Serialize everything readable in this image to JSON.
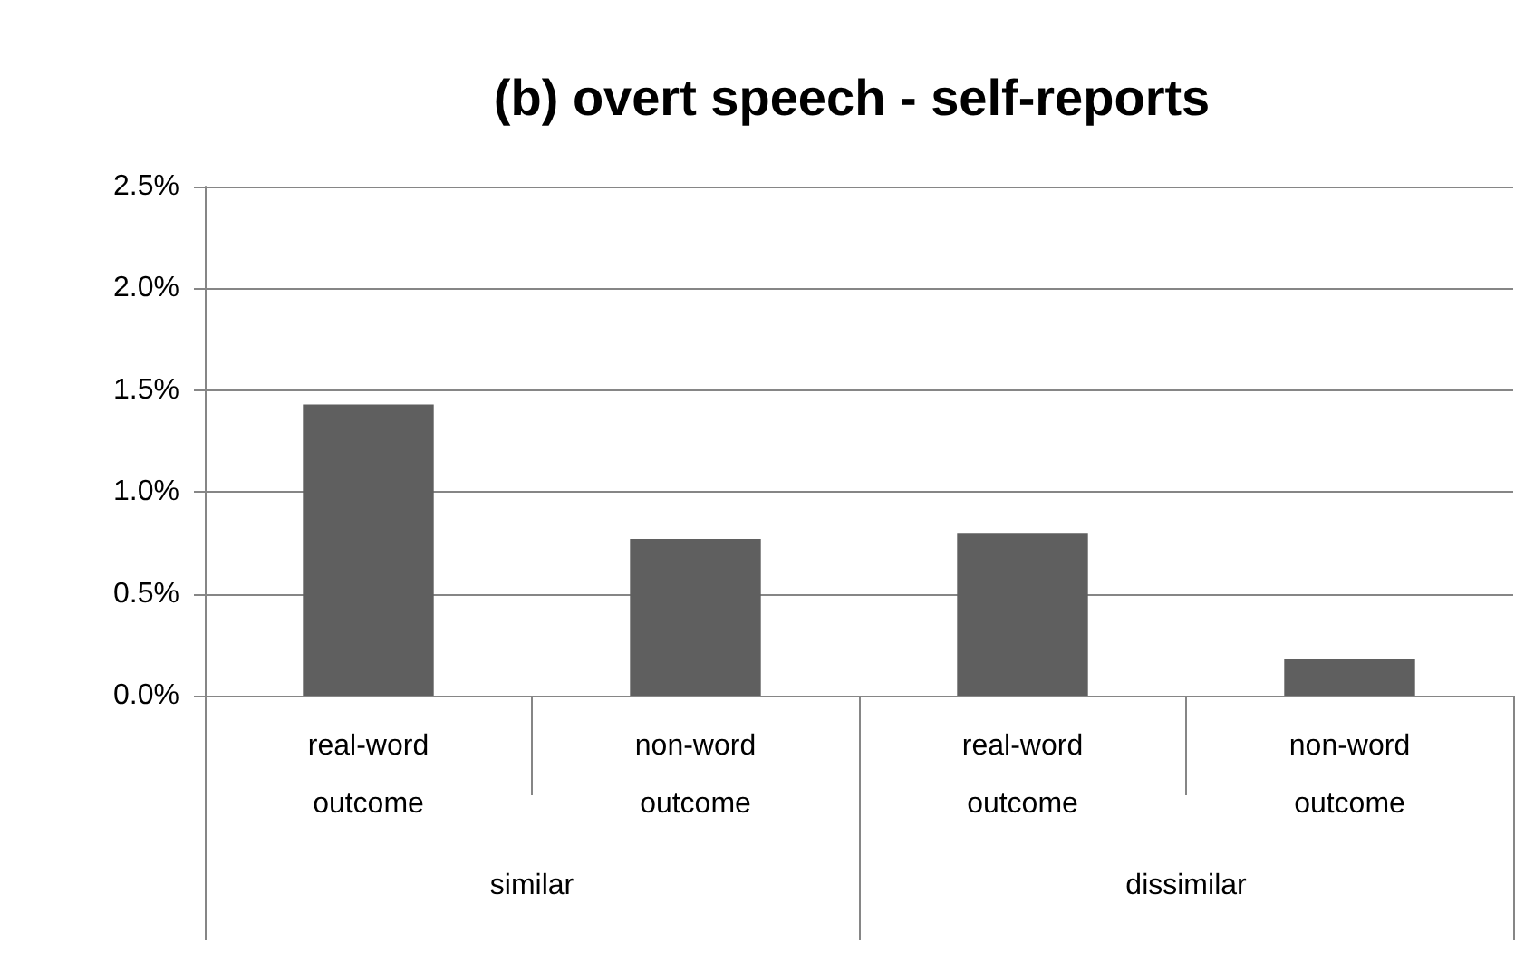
{
  "chart_data": {
    "type": "bar",
    "title": "(b) overt speech - self-reports",
    "categories": [
      "real-word\noutcome",
      "non-word\noutcome",
      "real-word\noutcome",
      "non-word\noutcome"
    ],
    "annotations": [
      "similar",
      "dissimilar"
    ],
    "values": [
      1.43,
      0.77,
      0.8,
      0.18
    ],
    "color": "#5f5f5f",
    "ylim": [
      0,
      2.5
    ],
    "yticks": [
      {
        "value": 0,
        "label": "0.0%"
      },
      {
        "value": 0.5,
        "label": "0.5%"
      },
      {
        "value": 1,
        "label": "1.0%"
      },
      {
        "value": 1.5,
        "label": "1.5%"
      },
      {
        "value": 2,
        "label": "2.0%"
      },
      {
        "value": 2.5,
        "label": "2.5%"
      }
    ],
    "grid": "y"
  }
}
